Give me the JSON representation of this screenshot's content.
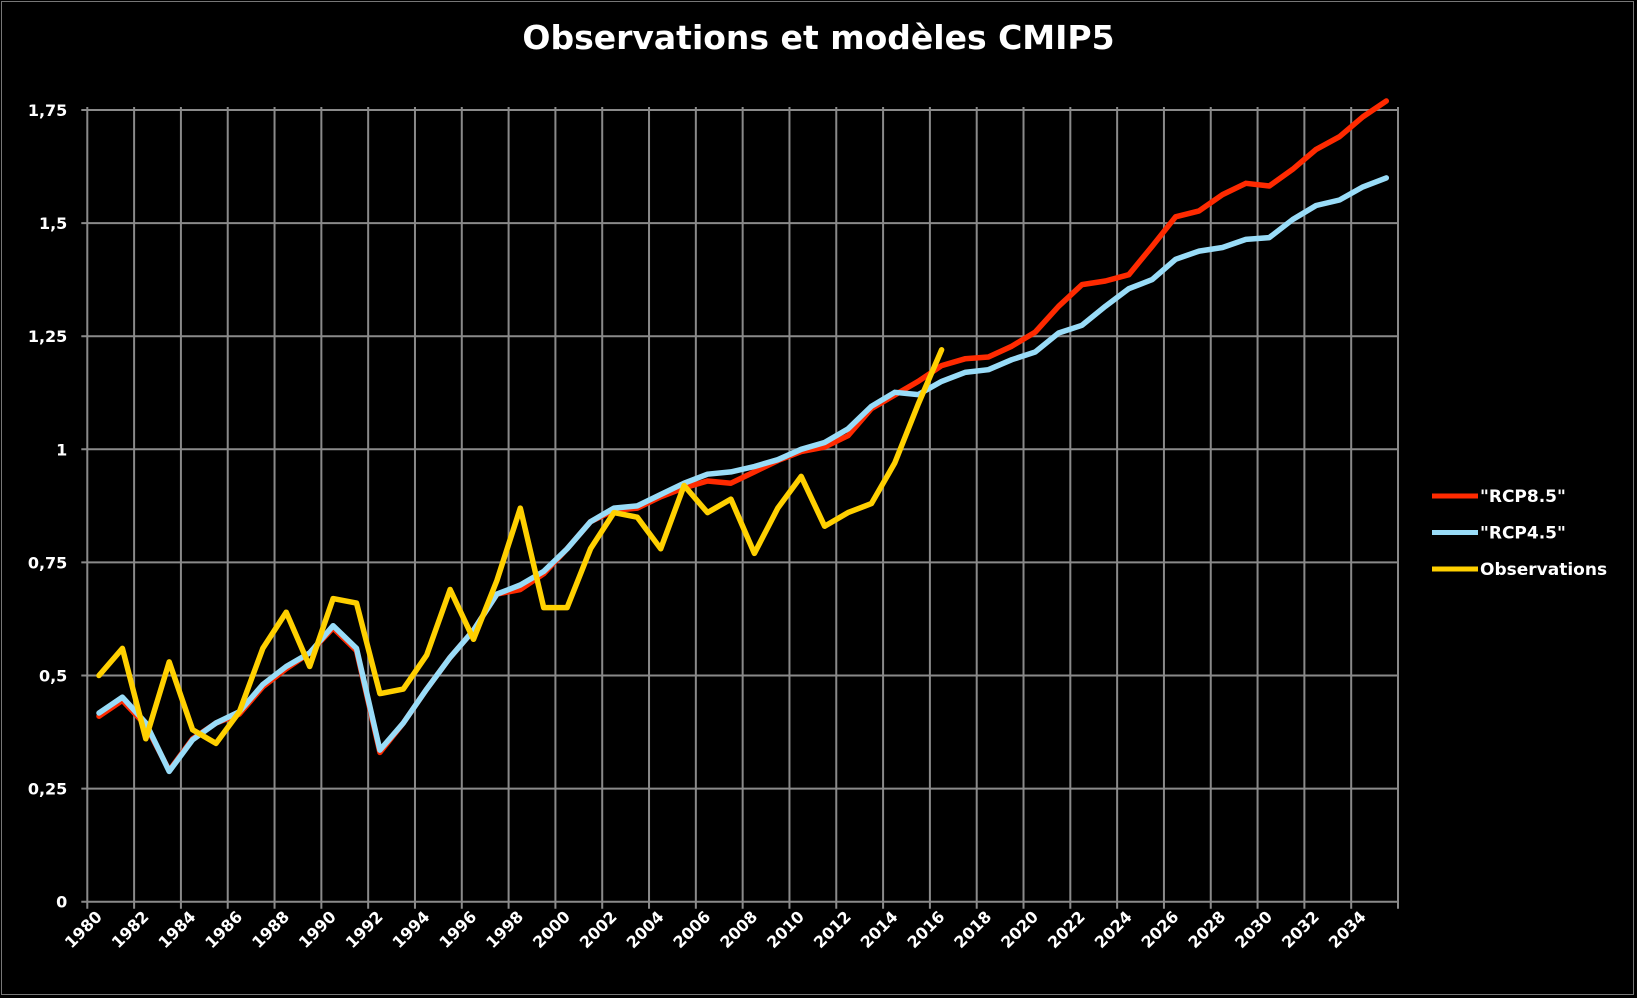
{
  "chart_data": {
    "type": "line",
    "title": "Observations et modèles CMIP5",
    "xlabel": "",
    "ylabel": "",
    "categories": [
      1980,
      1981,
      1982,
      1983,
      1984,
      1985,
      1986,
      1987,
      1988,
      1989,
      1990,
      1991,
      1992,
      1993,
      1994,
      1995,
      1996,
      1997,
      1998,
      1999,
      2000,
      2001,
      2002,
      2003,
      2004,
      2005,
      2006,
      2007,
      2008,
      2009,
      2010,
      2011,
      2012,
      2013,
      2014,
      2015,
      2016,
      2017,
      2018,
      2019,
      2020,
      2021,
      2022,
      2023,
      2024,
      2025,
      2026,
      2027,
      2028,
      2029,
      2030,
      2031,
      2032,
      2033,
      2034,
      2035
    ],
    "x_tick_labels": [
      "1980",
      "1982",
      "1984",
      "1986",
      "1988",
      "1990",
      "1992",
      "1994",
      "1996",
      "1998",
      "2000",
      "2002",
      "2004",
      "2006",
      "2008",
      "2010",
      "2012",
      "2014",
      "2016",
      "2018",
      "2020",
      "2022",
      "2024",
      "2026",
      "2028",
      "2030",
      "2032",
      "2034"
    ],
    "y_tick_labels": [
      "0",
      "0,25",
      "0,5",
      "0,75",
      "1",
      "1,25",
      "1,5",
      "1,75"
    ],
    "y_ticks": [
      0,
      0.25,
      0.5,
      0.75,
      1,
      1.25,
      1.5,
      1.75
    ],
    "ylim": [
      0,
      1.75
    ],
    "grid": true,
    "legend_position": "right",
    "series": [
      {
        "name": "\"RCP8.5\"",
        "color": "#ff2a00",
        "values": [
          0.41,
          0.445,
          0.39,
          0.29,
          0.36,
          0.395,
          0.415,
          0.475,
          0.515,
          0.55,
          0.605,
          0.555,
          0.33,
          0.395,
          0.47,
          0.54,
          0.6,
          0.68,
          0.69,
          0.725,
          0.78,
          0.84,
          0.865,
          0.87,
          0.895,
          0.915,
          0.93,
          0.925,
          0.95,
          0.975,
          0.995,
          1.005,
          1.03,
          1.09,
          1.12,
          1.15,
          1.185,
          1.2,
          1.204,
          1.228,
          1.259,
          1.316,
          1.364,
          1.372,
          1.386,
          1.449,
          1.514,
          1.527,
          1.563,
          1.588,
          1.582,
          1.619,
          1.663,
          1.691,
          1.735,
          1.77
        ]
      },
      {
        "name": "\"RCP4.5\"",
        "color": "#99dcf8",
        "values": [
          0.417,
          0.452,
          0.395,
          0.288,
          0.358,
          0.395,
          0.42,
          0.48,
          0.52,
          0.55,
          0.61,
          0.56,
          0.335,
          0.395,
          0.47,
          0.54,
          0.6,
          0.68,
          0.7,
          0.73,
          0.78,
          0.84,
          0.87,
          0.875,
          0.9,
          0.925,
          0.945,
          0.95,
          0.962,
          0.977,
          1.0,
          1.015,
          1.045,
          1.095,
          1.126,
          1.121,
          1.15,
          1.17,
          1.176,
          1.198,
          1.215,
          1.257,
          1.274,
          1.316,
          1.355,
          1.375,
          1.42,
          1.438,
          1.446,
          1.464,
          1.468,
          1.508,
          1.539,
          1.551,
          1.58,
          1.6
        ]
      },
      {
        "name": "Observations",
        "color": "#ffd000",
        "values": [
          0.5,
          0.56,
          0.36,
          0.53,
          0.38,
          0.35,
          0.42,
          0.56,
          0.64,
          0.52,
          0.67,
          0.66,
          0.46,
          0.47,
          0.545,
          0.69,
          0.58,
          0.71,
          0.87,
          0.65,
          0.65,
          0.78,
          0.86,
          0.85,
          0.78,
          0.92,
          0.86,
          0.89,
          0.77,
          0.87,
          0.94,
          0.83,
          0.86,
          0.88,
          0.97,
          1.1,
          1.22,
          null,
          null,
          null,
          null,
          null,
          null,
          null,
          null,
          null,
          null,
          null,
          null,
          null,
          null,
          null,
          null,
          null,
          null,
          null
        ]
      }
    ]
  }
}
